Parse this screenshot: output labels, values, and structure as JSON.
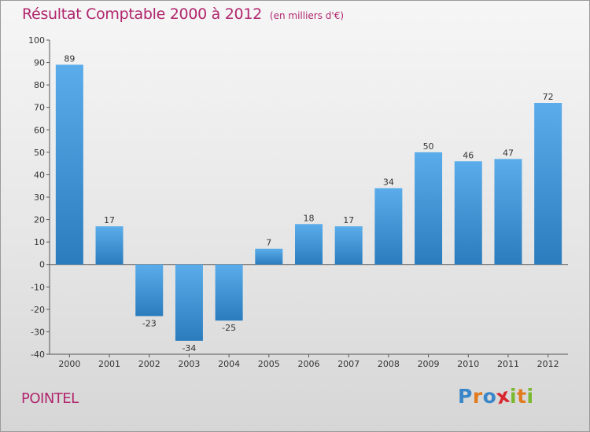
{
  "chart_data": {
    "type": "bar",
    "title": "Résultat Comptable 2000 à 2012",
    "unit_note": "(en milliers d'€)",
    "categories": [
      "2000",
      "2001",
      "2002",
      "2003",
      "2004",
      "2005",
      "2006",
      "2007",
      "2008",
      "2009",
      "2010",
      "2011",
      "2012"
    ],
    "values": [
      89,
      17,
      -23,
      -34,
      -25,
      7,
      18,
      17,
      34,
      50,
      46,
      47,
      72
    ],
    "ylim": [
      -40,
      100
    ],
    "yticks": [
      -40,
      -30,
      -20,
      -10,
      0,
      10,
      20,
      30,
      40,
      50,
      60,
      70,
      80,
      90,
      100
    ],
    "xlabel": "",
    "ylabel": "",
    "grid": false,
    "colors": {
      "bar_top": "#5aacea",
      "bar_bottom": "#2a7cbd",
      "title": "#b0266d"
    }
  },
  "commune": "POINTEL",
  "logo": {
    "letters": [
      "P",
      "r",
      "o",
      "x",
      "i",
      "t",
      "i"
    ],
    "colors": [
      "#3a86c9",
      "#e07b1f",
      "#3a86c9",
      "#d9262e",
      "#7ab82e",
      "#e07b1f",
      "#7ab82e"
    ]
  }
}
